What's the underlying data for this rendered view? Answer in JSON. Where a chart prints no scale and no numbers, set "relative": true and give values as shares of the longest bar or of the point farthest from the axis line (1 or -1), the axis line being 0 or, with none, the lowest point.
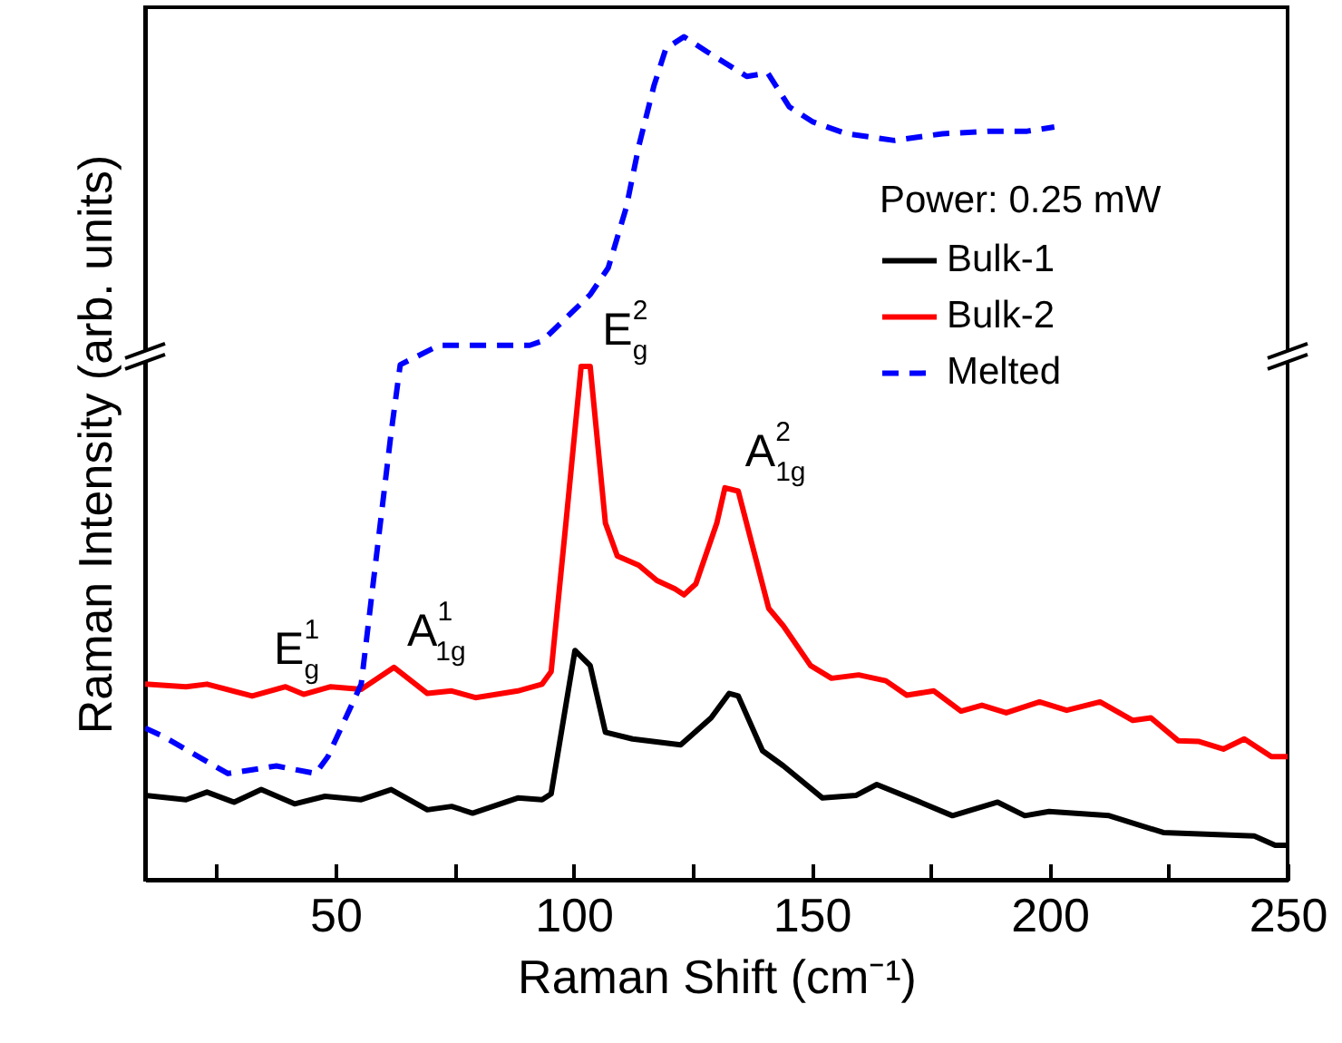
{
  "chart_data": {
    "type": "line",
    "xlabel": "Raman Shift (cm⁻¹)",
    "ylabel": "Raman Intensity (arb. units)",
    "legend_title": "Power: 0.25 mW",
    "legend": "right",
    "relative": true,
    "xlim": [
      10,
      250
    ],
    "xticks": [
      {
        "value": 25,
        "label": null
      },
      50,
      {
        "value": 75,
        "label": null
      },
      100,
      {
        "value": 125,
        "label": null
      },
      150,
      {
        "value": 175,
        "label": null
      },
      200,
      {
        "value": 225,
        "label": null
      },
      250
    ],
    "annotations": [
      {
        "text": "E$^{1}$$_{g}$",
        "x": 34,
        "y": 0.23
      },
      {
        "text": "A$^{1}$$_{1g}$",
        "x": 62,
        "y": 0.252
      },
      {
        "text": "E$^{2}$$_{g}$",
        "x": 103,
        "y": 0.609
      },
      {
        "text": "A$^{2}$$_{1g}$",
        "x": 133,
        "y": 0.465
      }
    ],
    "series": [
      {
        "name": "Bulk-1",
        "color": "#000000",
        "line_style": "solid",
        "x": [
          10,
          18.6,
          23,
          28.7,
          34.4,
          41.4,
          47.8,
          55.4,
          61.7,
          69.3,
          74.4,
          78.8,
          88.3,
          93.4,
          95.3,
          100.3,
          103.5,
          106.7,
          112.4,
          122.5,
          128.9,
          132.7,
          134.6,
          139.7,
          144.1,
          152.3,
          159.3,
          163.7,
          172,
          179.6,
          189.1,
          194.8,
          199.9,
          212.5,
          223.9,
          232.8,
          243,
          247.4,
          250
        ],
        "values": [
          0.1,
          0.095,
          0.104,
          0.092,
          0.107,
          0.09,
          0.099,
          0.095,
          0.107,
          0.083,
          0.087,
          0.079,
          0.097,
          0.095,
          0.102,
          0.272,
          0.254,
          0.175,
          0.167,
          0.16,
          0.192,
          0.221,
          0.218,
          0.153,
          0.135,
          0.097,
          0.1,
          0.113,
          0.094,
          0.076,
          0.092,
          0.076,
          0.081,
          0.076,
          0.056,
          0.054,
          0.052,
          0.041,
          0.041
        ]
      },
      {
        "name": "Bulk-2",
        "color": "#ff0000",
        "line_style": "solid",
        "x": [
          10,
          18.6,
          23,
          32.5,
          39.5,
          43.3,
          49,
          55.4,
          62.3,
          69.3,
          74.4,
          79.4,
          88.3,
          93.4,
          95.3,
          98.4,
          101.6,
          103.5,
          106.7,
          109.2,
          113.7,
          117.5,
          121.3,
          123.2,
          125.7,
          130.1,
          131.8,
          134.6,
          141,
          144.1,
          149.8,
          154.2,
          159.9,
          165.6,
          170,
          175.7,
          181.4,
          185.8,
          190.9,
          197.9,
          203.6,
          210.6,
          217.5,
          221.3,
          227,
          231.4,
          236.5,
          240.9,
          246.6,
          250
        ],
        "values": [
          0.232,
          0.229,
          0.232,
          0.218,
          0.229,
          0.22,
          0.229,
          0.226,
          0.252,
          0.221,
          0.224,
          0.216,
          0.224,
          0.232,
          0.247,
          0.423,
          0.609,
          0.609,
          0.423,
          0.384,
          0.373,
          0.355,
          0.345,
          0.338,
          0.351,
          0.423,
          0.465,
          0.461,
          0.322,
          0.301,
          0.254,
          0.239,
          0.243,
          0.236,
          0.219,
          0.224,
          0.2,
          0.207,
          0.198,
          0.211,
          0.201,
          0.211,
          0.189,
          0.192,
          0.165,
          0.164,
          0.155,
          0.167,
          0.146,
          0.146
        ]
      },
      {
        "name": "Melted",
        "color": "#0000ff",
        "line_style": "dashed",
        "x": [
          10,
          13.5,
          27.4,
          37.6,
          45.8,
          48.4,
          55.4,
          57.9,
          61.7,
          63.6,
          71.8,
          90.8,
          93.4,
          103.5,
          107.3,
          111.1,
          113.7,
          116.9,
          119.4,
          123.2,
          128.1,
          136.4,
          140.8,
          145.3,
          150.3,
          157.3,
          167.4,
          177.5,
          187.7,
          195.3,
          201
        ],
        "values": [
          0.18,
          0.171,
          0.126,
          0.135,
          0.126,
          0.146,
          0.232,
          0.351,
          0.531,
          0.611,
          0.634,
          0.634,
          0.639,
          0.694,
          0.726,
          0.798,
          0.87,
          0.942,
          0.986,
          1.0,
          0.982,
          0.953,
          0.957,
          0.917,
          0.899,
          0.885,
          0.877,
          0.885,
          0.888,
          0.888,
          0.893
        ]
      }
    ]
  }
}
